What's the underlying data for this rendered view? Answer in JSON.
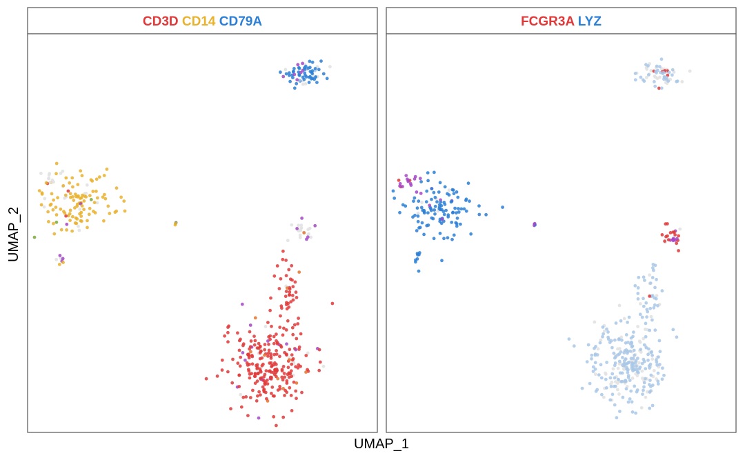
{
  "chart_data": {
    "type": "scatter",
    "xlabel": "UMAP_1",
    "ylabel": "UMAP_2",
    "xlim": [
      -12,
      12
    ],
    "ylim": [
      -12,
      12
    ],
    "grid": false,
    "point_colors": {
      "none": "#e2e2e2",
      "red": "#e0393a",
      "yellow": "#e9b22d",
      "blue": "#2c7fd6",
      "light_blue": "#a9c7e6",
      "purple": "#a448c6",
      "orange": "#e8742e",
      "green": "#7aa838"
    },
    "panels": [
      {
        "title_parts": [
          {
            "text": "CD3D",
            "color": "#e0393a"
          },
          {
            "text": "CD14",
            "color": "#e9b22d"
          },
          {
            "text": "CD79A",
            "color": "#2c7fd6"
          }
        ],
        "clusters": [
          {
            "cx": 7.5,
            "cy": 10.4,
            "sx": 0.9,
            "sy": 0.35,
            "n": 70,
            "mix": {
              "blue": 0.72,
              "none": 0.16,
              "light_blue": 0.06,
              "purple": 0.06
            }
          },
          {
            "cx": -9.5,
            "cy": 2.0,
            "sx": 1.4,
            "sy": 0.9,
            "n": 120,
            "mix": {
              "yellow": 0.82,
              "none": 0.1,
              "green": 0.03,
              "red": 0.02,
              "purple": 0.03
            }
          },
          {
            "cx": -11.2,
            "cy": 3.6,
            "sx": 0.4,
            "sy": 0.3,
            "n": 10,
            "mix": {
              "none": 0.7,
              "red": 0.3
            }
          },
          {
            "cx": -10.6,
            "cy": -1.8,
            "sx": 0.25,
            "sy": 0.35,
            "n": 8,
            "mix": {
              "none": 0.5,
              "purple": 0.25,
              "yellow": 0.25
            }
          },
          {
            "cx": -2.0,
            "cy": 0.6,
            "sx": 0.05,
            "sy": 0.05,
            "n": 4,
            "mix": {
              "yellow": 0.6,
              "blue": 0.4
            }
          },
          {
            "cx": 7.6,
            "cy": 0.2,
            "sx": 0.6,
            "sy": 0.4,
            "n": 22,
            "mix": {
              "none": 0.82,
              "purple": 0.1,
              "orange": 0.08
            }
          },
          {
            "cx": 6.5,
            "cy": -4.0,
            "sx": 0.55,
            "sy": 1.2,
            "n": 45,
            "mix": {
              "red": 0.9,
              "none": 0.06,
              "orange": 0.04
            }
          },
          {
            "cx": 5.0,
            "cy": -8.5,
            "sx": 1.5,
            "sy": 1.3,
            "n": 260,
            "mix": {
              "red": 0.84,
              "none": 0.07,
              "purple": 0.05,
              "orange": 0.04
            }
          }
        ]
      },
      {
        "title_parts": [
          {
            "text": "FCGR3A",
            "color": "#e0393a"
          },
          {
            "text": "LYZ",
            "color": "#2c7fd6"
          }
        ],
        "clusters": [
          {
            "cx": 7.5,
            "cy": 10.4,
            "sx": 0.9,
            "sy": 0.35,
            "n": 70,
            "mix": {
              "light_blue": 0.45,
              "none": 0.5,
              "red": 0.05
            }
          },
          {
            "cx": -9.2,
            "cy": 1.6,
            "sx": 1.4,
            "sy": 0.9,
            "n": 120,
            "mix": {
              "blue": 0.9,
              "purple": 0.07,
              "none": 0.03
            }
          },
          {
            "cx": -11.3,
            "cy": 3.4,
            "sx": 0.45,
            "sy": 0.3,
            "n": 16,
            "mix": {
              "purple": 0.9,
              "red": 0.1
            }
          },
          {
            "cx": -10.6,
            "cy": -1.7,
            "sx": 0.25,
            "sy": 0.35,
            "n": 8,
            "mix": {
              "blue": 0.85,
              "purple": 0.15
            }
          },
          {
            "cx": -2.0,
            "cy": 0.6,
            "sx": 0.05,
            "sy": 0.05,
            "n": 4,
            "mix": {
              "purple": 0.5,
              "blue": 0.5
            }
          },
          {
            "cx": 8.4,
            "cy": -0.2,
            "sx": 0.5,
            "sy": 0.4,
            "n": 25,
            "mix": {
              "red": 0.75,
              "purple": 0.2,
              "none": 0.05
            }
          },
          {
            "cx": 6.5,
            "cy": -4.0,
            "sx": 0.55,
            "sy": 1.2,
            "n": 45,
            "mix": {
              "light_blue": 0.7,
              "none": 0.22,
              "red": 0.08
            }
          },
          {
            "cx": 5.0,
            "cy": -8.5,
            "sx": 1.5,
            "sy": 1.3,
            "n": 260,
            "mix": {
              "light_blue": 0.72,
              "none": 0.26,
              "red": 0.02
            }
          }
        ]
      }
    ]
  }
}
